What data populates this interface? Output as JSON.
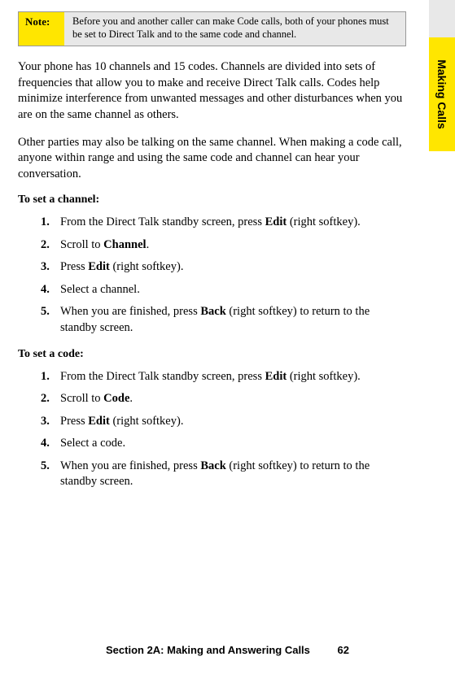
{
  "note": {
    "label": "Note:",
    "text": "Before you and another caller can make Code calls, both of your phones must be set to Direct Talk and to the same code and channel."
  },
  "para1": "Your phone has 10 channels and 15 codes. Channels are divided into sets of frequencies that allow you to make and receive Direct Talk calls. Codes help minimize interference from unwanted messages and other disturbances when you are on the same channel as others.",
  "para2": "Other parties may also be talking on the same channel. When making a code call, anyone within range and using the same code and channel can hear your conversation.",
  "channel": {
    "heading": "To set a channel:",
    "s1_a": "From the Direct Talk standby screen, press ",
    "s1_b": "Edit",
    "s1_c": " (right softkey).",
    "s2_a": "Scroll to ",
    "s2_b": "Channel",
    "s2_c": ".",
    "s3_a": "Press ",
    "s3_b": "Edit",
    "s3_c": " (right softkey).",
    "s4": "Select a channel.",
    "s5_a": "When you are finished, press ",
    "s5_b": "Back",
    "s5_c": " (right softkey) to return to the standby screen."
  },
  "code": {
    "heading": "To set a code:",
    "s1_a": "From the Direct Talk standby screen, press ",
    "s1_b": "Edit",
    "s1_c": " (right softkey).",
    "s2_a": "Scroll to ",
    "s2_b": "Code",
    "s2_c": ".",
    "s3_a": "Press ",
    "s3_b": "Edit",
    "s3_c": " (right softkey).",
    "s4": "Select a code.",
    "s5_a": "When you are finished, press ",
    "s5_b": "Back",
    "s5_c": " (right softkey) to return to the standby screen."
  },
  "sidebar": "Making Calls",
  "footer": {
    "section": "Section 2A: Making and Answering Calls",
    "page": "62"
  },
  "nums": {
    "n1": "1.",
    "n2": "2.",
    "n3": "3.",
    "n4": "4.",
    "n5": "5."
  }
}
